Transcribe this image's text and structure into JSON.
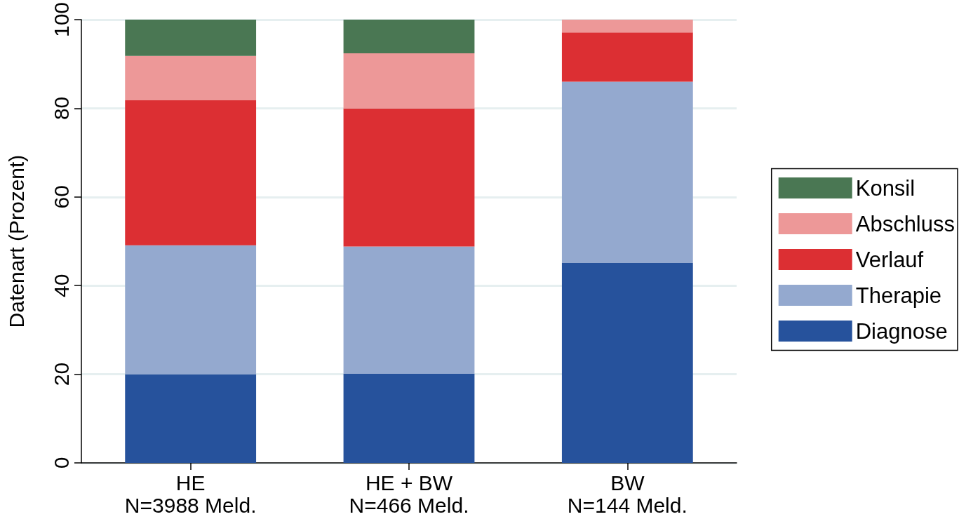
{
  "chart_data": {
    "type": "bar",
    "stacked": true,
    "ylabel": "Datenart (Prozent)",
    "categories": [
      "HE\nN=3988 Meld.",
      "HE + BW\nN=466 Meld.",
      "BW\nN=144 Meld."
    ],
    "series": [
      {
        "name": "Diagnose",
        "color": "#26529c",
        "values": [
          20.0,
          20.1,
          45.1
        ]
      },
      {
        "name": "Therapie",
        "color": "#94a9cf",
        "values": [
          29.1,
          28.7,
          40.9
        ]
      },
      {
        "name": "Verlauf",
        "color": "#dc2f33",
        "values": [
          32.7,
          31.2,
          11.1
        ]
      },
      {
        "name": "Abschluss",
        "color": "#ed9898",
        "values": [
          10.0,
          12.4,
          2.9
        ]
      },
      {
        "name": "Konsil",
        "color": "#4a7753",
        "values": [
          8.2,
          7.6,
          0
        ]
      }
    ],
    "ylim": [
      0,
      100
    ],
    "yticks": [
      0,
      20,
      40,
      60,
      80,
      100
    ],
    "grid": "y",
    "legend": "right"
  }
}
